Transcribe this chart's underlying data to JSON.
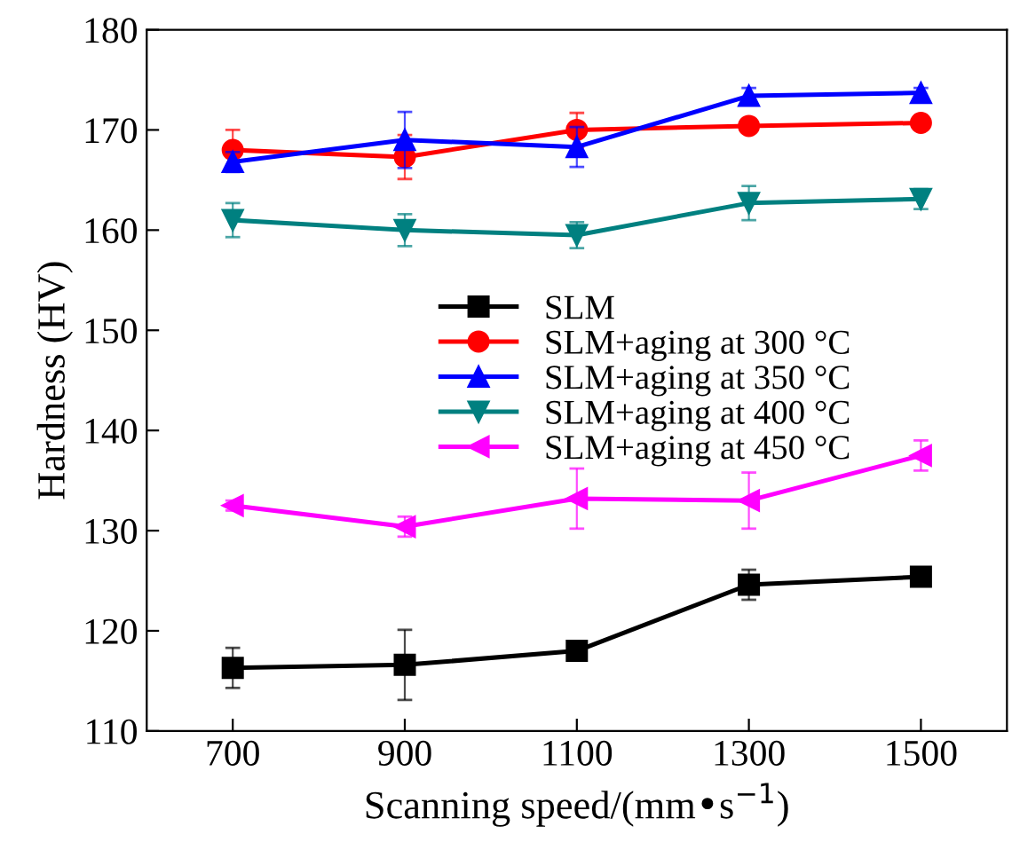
{
  "chart_data": {
    "type": "line",
    "xlabel": "Scanning speed/(mm•s$^{−1}$)",
    "ylabel": "Hardness (HV)",
    "x": [
      700,
      900,
      1100,
      1300,
      1500
    ],
    "series": [
      {
        "name": "SLM",
        "color": "#000000",
        "marker": "square",
        "values": [
          116.3,
          116.6,
          118.0,
          124.6,
          125.4
        ],
        "errors": [
          2.0,
          3.5,
          0.5,
          1.5,
          0.5
        ]
      },
      {
        "name": "SLM+aging at 300 °C",
        "color": "#ff0000",
        "marker": "circle",
        "values": [
          168.0,
          167.3,
          170.0,
          170.4,
          170.7
        ],
        "errors": [
          2.0,
          2.2,
          1.7,
          0.4,
          0.4
        ]
      },
      {
        "name": "SLM+aging at 350 °C",
        "color": "#0000ff",
        "marker": "triangle",
        "values": [
          166.8,
          169.0,
          168.3,
          173.4,
          173.7
        ],
        "errors": [
          1.0,
          2.8,
          2.0,
          0.8,
          0.5
        ]
      },
      {
        "name": "SLM+aging at 400 °C",
        "color": "#008080",
        "marker": "triangle-down",
        "values": [
          161.0,
          160.0,
          159.5,
          162.7,
          163.1
        ],
        "errors": [
          1.7,
          1.6,
          1.3,
          1.7,
          1.0
        ]
      },
      {
        "name": "SLM+aging at 450 °C",
        "color": "#ff00ff",
        "marker": "triangle-left",
        "values": [
          132.5,
          130.4,
          133.2,
          133.0,
          137.5
        ],
        "errors": [
          0.5,
          1.0,
          3.0,
          2.8,
          1.5
        ]
      }
    ],
    "xlim": [
      600,
      1600
    ],
    "xticks": [
      700,
      900,
      1100,
      1300,
      1500
    ],
    "ylim": [
      110,
      180
    ],
    "yticks": [
      110,
      120,
      130,
      140,
      150,
      160,
      170,
      180
    ],
    "grid": false,
    "legend": "center",
    "line_style": "solid"
  }
}
